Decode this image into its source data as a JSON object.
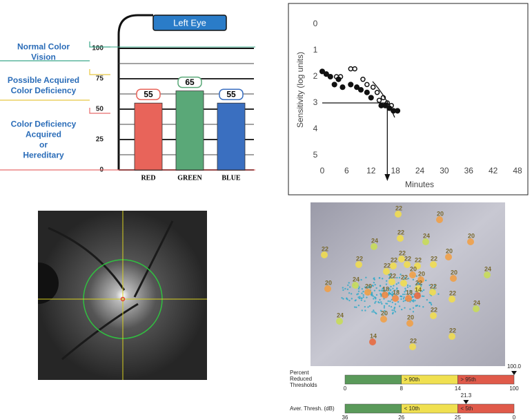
{
  "chart_data": [
    {
      "type": "bar",
      "title": "Left Eye",
      "categories": [
        "RED",
        "GREEN",
        "BLUE"
      ],
      "values": [
        55,
        65,
        55
      ],
      "colors": [
        "#e8645a",
        "#5aa878",
        "#3a6fc0"
      ],
      "ylim": [
        0,
        100
      ],
      "yticks": [
        0,
        25,
        50,
        75,
        100
      ],
      "zones": [
        {
          "lines": [
            "Normal Color",
            "Vision"
          ],
          "color": "#3aa88a"
        },
        {
          "lines": [
            "Possible Acquired",
            "Color Deficiency"
          ],
          "color": "#e8c840"
        },
        {
          "lines": [
            "Color Deficiency",
            "Acquired",
            "or",
            "Hereditary"
          ],
          "color": "#e86a6a"
        }
      ]
    },
    {
      "type": "scatter",
      "xlabel": "Minutes",
      "ylabel": "Sensitivity (log units)",
      "xlim": [
        0,
        48
      ],
      "xticks": [
        0,
        6,
        12,
        18,
        24,
        30,
        36,
        42,
        48
      ],
      "ylim": [
        0,
        5
      ],
      "yticks": [
        0,
        1,
        2,
        3,
        4,
        5
      ],
      "y_inverted": true,
      "series": [
        {
          "marker": "filled",
          "color": "#111111",
          "x": [
            0,
            1,
            2,
            3,
            4,
            5,
            7,
            8.5,
            9.5,
            11,
            12,
            14.5,
            15.5,
            16.5,
            17.5,
            18.5
          ],
          "values": [
            1.8,
            1.9,
            2.0,
            2.3,
            2.1,
            2.4,
            2.3,
            2.4,
            2.5,
            2.6,
            2.8,
            3.1,
            3.1,
            3.2,
            3.3,
            3.3
          ]
        },
        {
          "marker": "open",
          "color": "#111111",
          "x": [
            3.5,
            4.5,
            7,
            8,
            10,
            11,
            12.5,
            13.5,
            14,
            15,
            16,
            17
          ],
          "values": [
            2.0,
            2.0,
            1.7,
            1.7,
            2.1,
            2.3,
            2.4,
            2.6,
            2.9,
            2.8,
            3.0,
            3.1
          ]
        }
      ],
      "reference": {
        "x": 16,
        "y": 3
      }
    },
    {
      "type": "map",
      "points": [
        22,
        20,
        24,
        22,
        24,
        20,
        22,
        22,
        22,
        20,
        22,
        22,
        22,
        22,
        22,
        20,
        20,
        20,
        24,
        24,
        22,
        22,
        22,
        20,
        20,
        18,
        18,
        18,
        14,
        22,
        22,
        24,
        22,
        20,
        20,
        24,
        22,
        14,
        22
      ],
      "point_colors": {
        "24": "#c8dc5a",
        "22": "#f0dc50",
        "20": "#f0a048",
        "18": "#f08a44",
        "14": "#e86a40"
      },
      "scales": [
        {
          "label_lines": [
            "Percent",
            "Reduced",
            "Thresholds"
          ],
          "ticks": [
            0,
            8,
            14,
            100
          ],
          "bands": [
            "> 90th",
            "> 95th"
          ],
          "marker": {
            "value": 100,
            "label": "100.0"
          }
        },
        {
          "label_lines": [
            "Aver. Thresh. (dB)"
          ],
          "ticks": [
            36,
            26,
            25,
            0
          ],
          "bands": [
            "< 10th",
            "< 5th"
          ],
          "marker": 21.3
        }
      ],
      "scale_colors": [
        "#5a9a5a",
        "#f0e050",
        "#e05a4a"
      ]
    }
  ]
}
